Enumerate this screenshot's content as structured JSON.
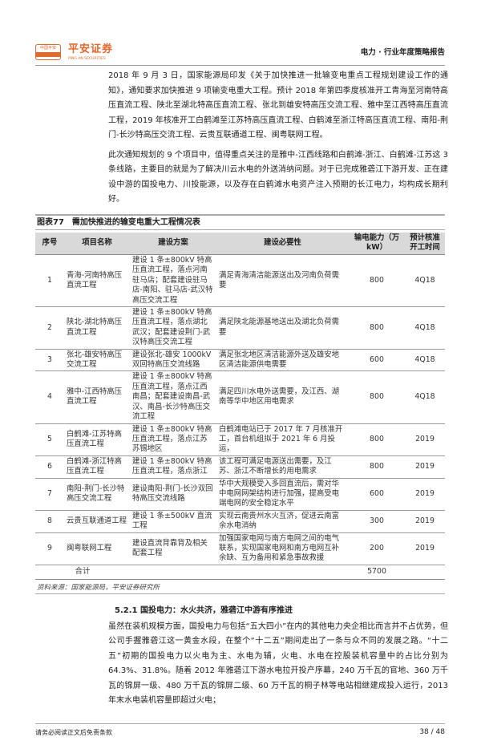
{
  "header": {
    "logo_small": "中国平安",
    "logo_cn": "平安证券",
    "logo_en": "PING AN SECURITIES",
    "report_title": "电力 · 行业年度策略报告",
    "brand_color": "#e8672a"
  },
  "paragraphs": [
    "2018 年 9 月 3 日，国家能源局印发《关于加快推进一批输变电重点工程规划建设工作的通知》，通知要求加快推进 9 项输变电重大工程。预计 2018 年第四季度核准开工青海至河南特高压直流工程、陕北至湖北特高压直流工程、张北到雄安特高压交流工程、雅中至江西特高压直流工程，2019 年核准开工白鹤滩至江苏特高压直流工程、白鹤滩至浙江特高压直流工程、南阳-荆门-长沙特高压交流工程、云贵互联通道工程、闽粤联网工程。",
    "此次通知规划的 9 个项目中，值得重点关注的是雅中-江西线路和白鹤滩-浙江、白鹤滩-江苏这 3 条线路，主要目的就是为了解决川云水电的外送消纳问题。对于已完成雅砻江下游开发、正在建设中游的国投电力、川投能源，以及存在白鹤滩水电资产注入预期的长江电力，均构成长期利好。"
  ],
  "table": {
    "label": "图表77",
    "title": "需加快推进的输变电重大工程情况表",
    "headers": [
      "序号",
      "项目名称",
      "建设方案",
      "建设必要性",
      "输电能力（万 kW）",
      "预计核准开工时间"
    ],
    "rows": [
      [
        "1",
        "青海-河南特高压直流工程",
        "建设 1 条±800kV 特高压直流工程，落点河南驻马店；配套建设驻马店-南阳、驻马店-武汉特高压交流工程",
        "满足青海清洁能源送出及河南负荷需要",
        "800",
        "4Q18"
      ],
      [
        "2",
        "陕北-湖北特高压直流工程",
        "建设 1 条±800kV 特高压直流工程，落点湖北武汉；配套建设荆门-武汉特高压交流工程",
        "满足陕北能源基地送出及湖北负荷需要",
        "800",
        "4Q18"
      ],
      [
        "3",
        "张北-雄安特高压交流工程",
        "建设张北-雄安 1000kV 双回特高压交流线路",
        "满足张北地区清洁能源外送及雄安地区清洁能源供电需要",
        "600",
        "4Q18"
      ],
      [
        "4",
        "雅中-江西特高压直流工程",
        "建设 1 条±800kV 特高压直流工程，落点江西南昌；配套建设南昌-武汉、南昌-长沙特高压交流工程",
        "满足四川水电外送需要，及江西、湖南等华中地区用电需求",
        "800",
        "4Q18"
      ],
      [
        "5",
        "白鹤滩-江苏特高压直流工程",
        "建设 1 条±800kV 特高压直流工程，落点江苏苏锡地区",
        "白鹤滩电站已于 2017 年 7 月核准开工，首台机组拟于 2021 年 6 月投运，",
        "800",
        "2019"
      ],
      [
        "6",
        "白鹤滩-浙江特高压直流工程",
        "建设 1 条±800kV 特高压直流工程，落点浙江",
        "该工程可满足电源送出需要，及江苏、浙江不断增长的用电需求",
        "800",
        "2019"
      ],
      [
        "7",
        "南阳-荆门-长沙特高压交流工程",
        "建设南阳-荆门-长沙双回特高压交流线路",
        "华中大规模受入多回直流后，需对华中电网网架结构进行加强，提高受电端电网的安全稳定水平",
        "600",
        "2019"
      ],
      [
        "8",
        "云贵互联通道工程",
        "建设 1 条±500kV 直流工程",
        "实现云南贵州水火互济，促进云南富余水电消纳",
        "300",
        "2019"
      ],
      [
        "9",
        "闽粤联网工程",
        "建设直流背靠背及相关配套工程",
        "加强国家电网与南方电网之间的电气联系，实现国家电网和南方电网互补余缺、互为备用和紧急事故救援",
        "200",
        "2019"
      ]
    ],
    "total_label": "合计",
    "total_value": "5700",
    "source": "资料来源：国家能源局，平安证券研究所"
  },
  "section": {
    "heading": "5.2.1 国投电力：水火共济，雅砻江中游有序推进",
    "paragraph": "虽然在装机规模方面，国投电力与包括“五大四小”在内的其他电力央企相比而言并不占优势，但公司手握雅砻江这一黄金水段，在整个“十二五”期间走出了一条与众不同的发展之路。“十二五”初期的国投电力以火电为主、水电为辅，火电、水电在控股装机容量中的占比分别为 64.3%、31.8%。随着 2012 年雅砻江下游水电拉开投产序幕，240 万千瓦的官地、360 万千瓦的锦屏一级、480 万千瓦的锦屏二级、60 万千瓦的桐子林等电站相继建成投入运行，2013 年末水电装机容量即超过火电；"
  },
  "footer": {
    "disclaimer": "请务必阅读正文后免责条款",
    "page": "38 / 48"
  }
}
